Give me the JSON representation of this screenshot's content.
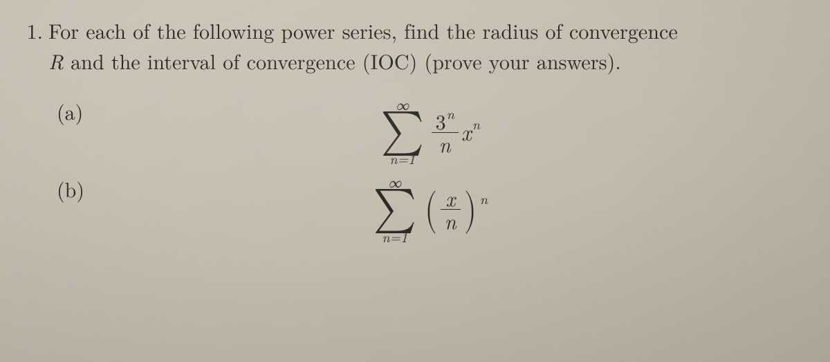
{
  "colors": {
    "background_start": "#cdc8ba",
    "background_end": "#b8b2a3",
    "text": "#2a2824",
    "rule": "#2a2824"
  },
  "typography": {
    "body_family": "Latin Modern Roman / Computer Modern serif",
    "body_size_pt": 30,
    "formula_size_pt": 34,
    "sigma_size_pt": 64,
    "limit_size_pt": 20
  },
  "problem": {
    "number": "1.",
    "stem_line1": "For each of the following power series, find the radius of convergence",
    "stem_line2_prefix": "",
    "R": "R",
    "stem_line2_mid": " and the interval of convergence (IOC) (prove your answers)."
  },
  "parts": {
    "a": {
      "label": "(a)",
      "sum_lower": "n=1",
      "sum_upper": "∞",
      "frac_top_base": "3",
      "frac_top_exp": "n",
      "frac_bot": "n",
      "tail_base": "x",
      "tail_exp": "n"
    },
    "b": {
      "label": "(b)",
      "sum_lower": "n=1",
      "sum_upper": "∞",
      "inner_top": "x",
      "inner_bot": "n",
      "outer_exp": "n"
    }
  }
}
